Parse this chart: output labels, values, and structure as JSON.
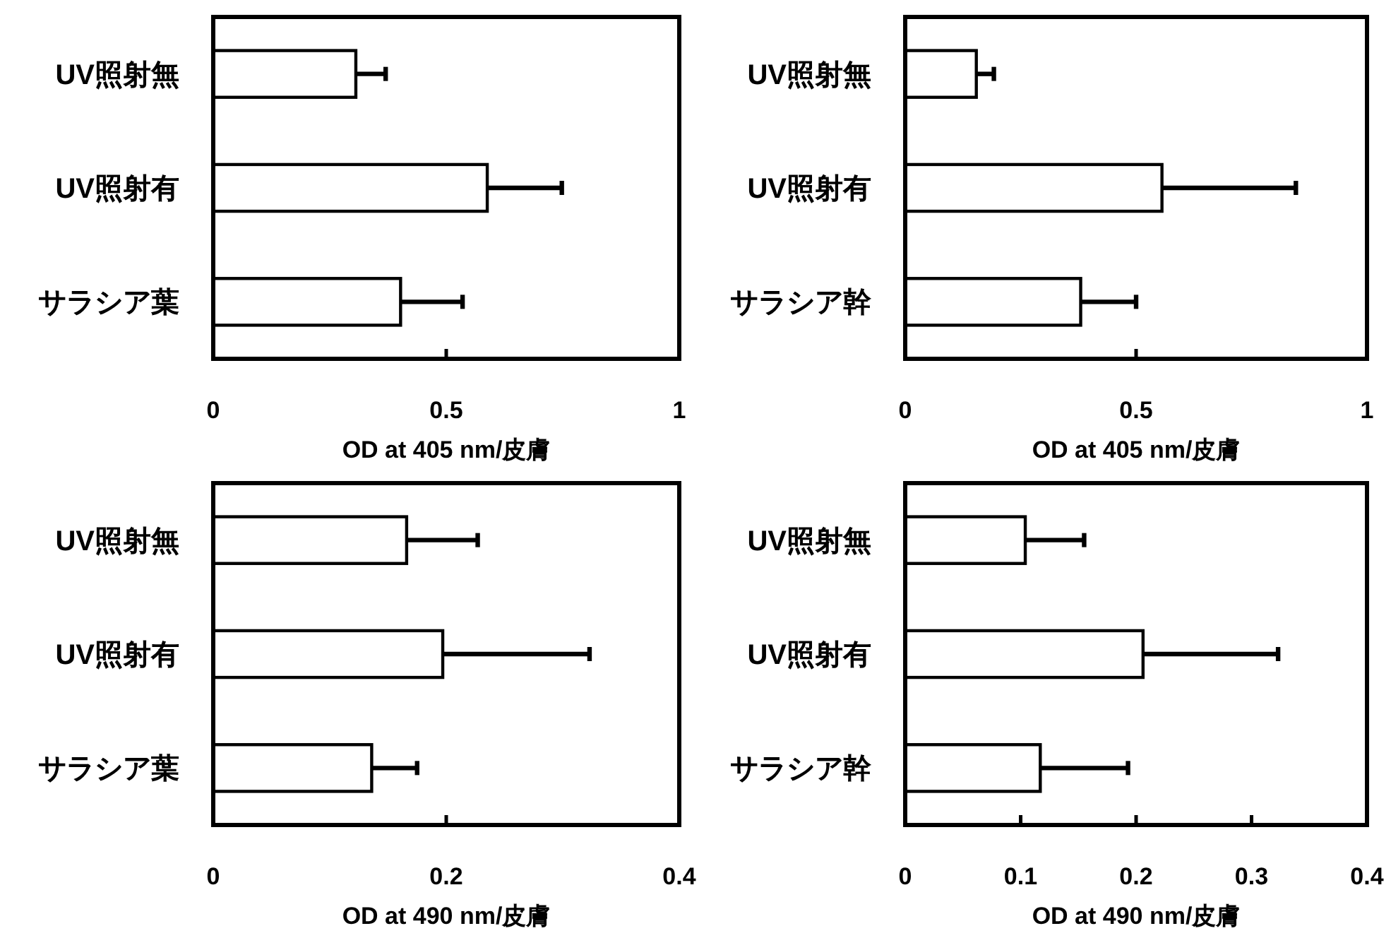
{
  "chart_data": [
    {
      "type": "bar",
      "orientation": "horizontal",
      "categories": [
        "UV照射無",
        "UV照射有",
        "サラシア葉"
      ],
      "xlabel": "OD at 405 nm/皮膚",
      "xlim": [
        0,
        1
      ],
      "xticks": [
        0,
        0.5,
        1
      ],
      "series": [
        {
          "color": "#ffffff",
          "values": [
            0.306,
            0.588,
            0.402
          ],
          "errors": [
            0.064,
            0.16,
            0.133
          ]
        }
      ]
    },
    {
      "type": "bar",
      "orientation": "horizontal",
      "categories": [
        "UV照射無",
        "UV照射有",
        "サラシア幹"
      ],
      "xlabel": "OD at 405 nm/皮膚",
      "xlim": [
        0,
        1
      ],
      "xticks": [
        0,
        0.5,
        1
      ],
      "series": [
        {
          "color": "#ffffff",
          "values": [
            0.154,
            0.556,
            0.38
          ],
          "errors": [
            0.038,
            0.29,
            0.12
          ]
        }
      ]
    },
    {
      "type": "bar",
      "orientation": "horizontal",
      "categories": [
        "UV照射無",
        "UV照射有",
        "サラシア葉"
      ],
      "xlabel": "OD at 490 nm/皮膚",
      "xlim": [
        0,
        0.4
      ],
      "xticks": [
        0,
        0.2,
        0.4
      ],
      "series": [
        {
          "color": "#ffffff",
          "values": [
            0.166,
            0.197,
            0.136
          ],
          "errors": [
            0.061,
            0.126,
            0.039
          ]
        }
      ]
    },
    {
      "type": "bar",
      "orientation": "horizontal",
      "categories": [
        "UV照射無",
        "UV照射有",
        "サラシア幹"
      ],
      "xlabel": "OD at 490 nm/皮膚",
      "xlim": [
        0,
        0.4
      ],
      "xticks": [
        0,
        0.1,
        0.2,
        0.3,
        0.4
      ],
      "series": [
        {
          "color": "#ffffff",
          "values": [
            0.104,
            0.206,
            0.117
          ],
          "errors": [
            0.051,
            0.117,
            0.076
          ]
        }
      ]
    }
  ]
}
